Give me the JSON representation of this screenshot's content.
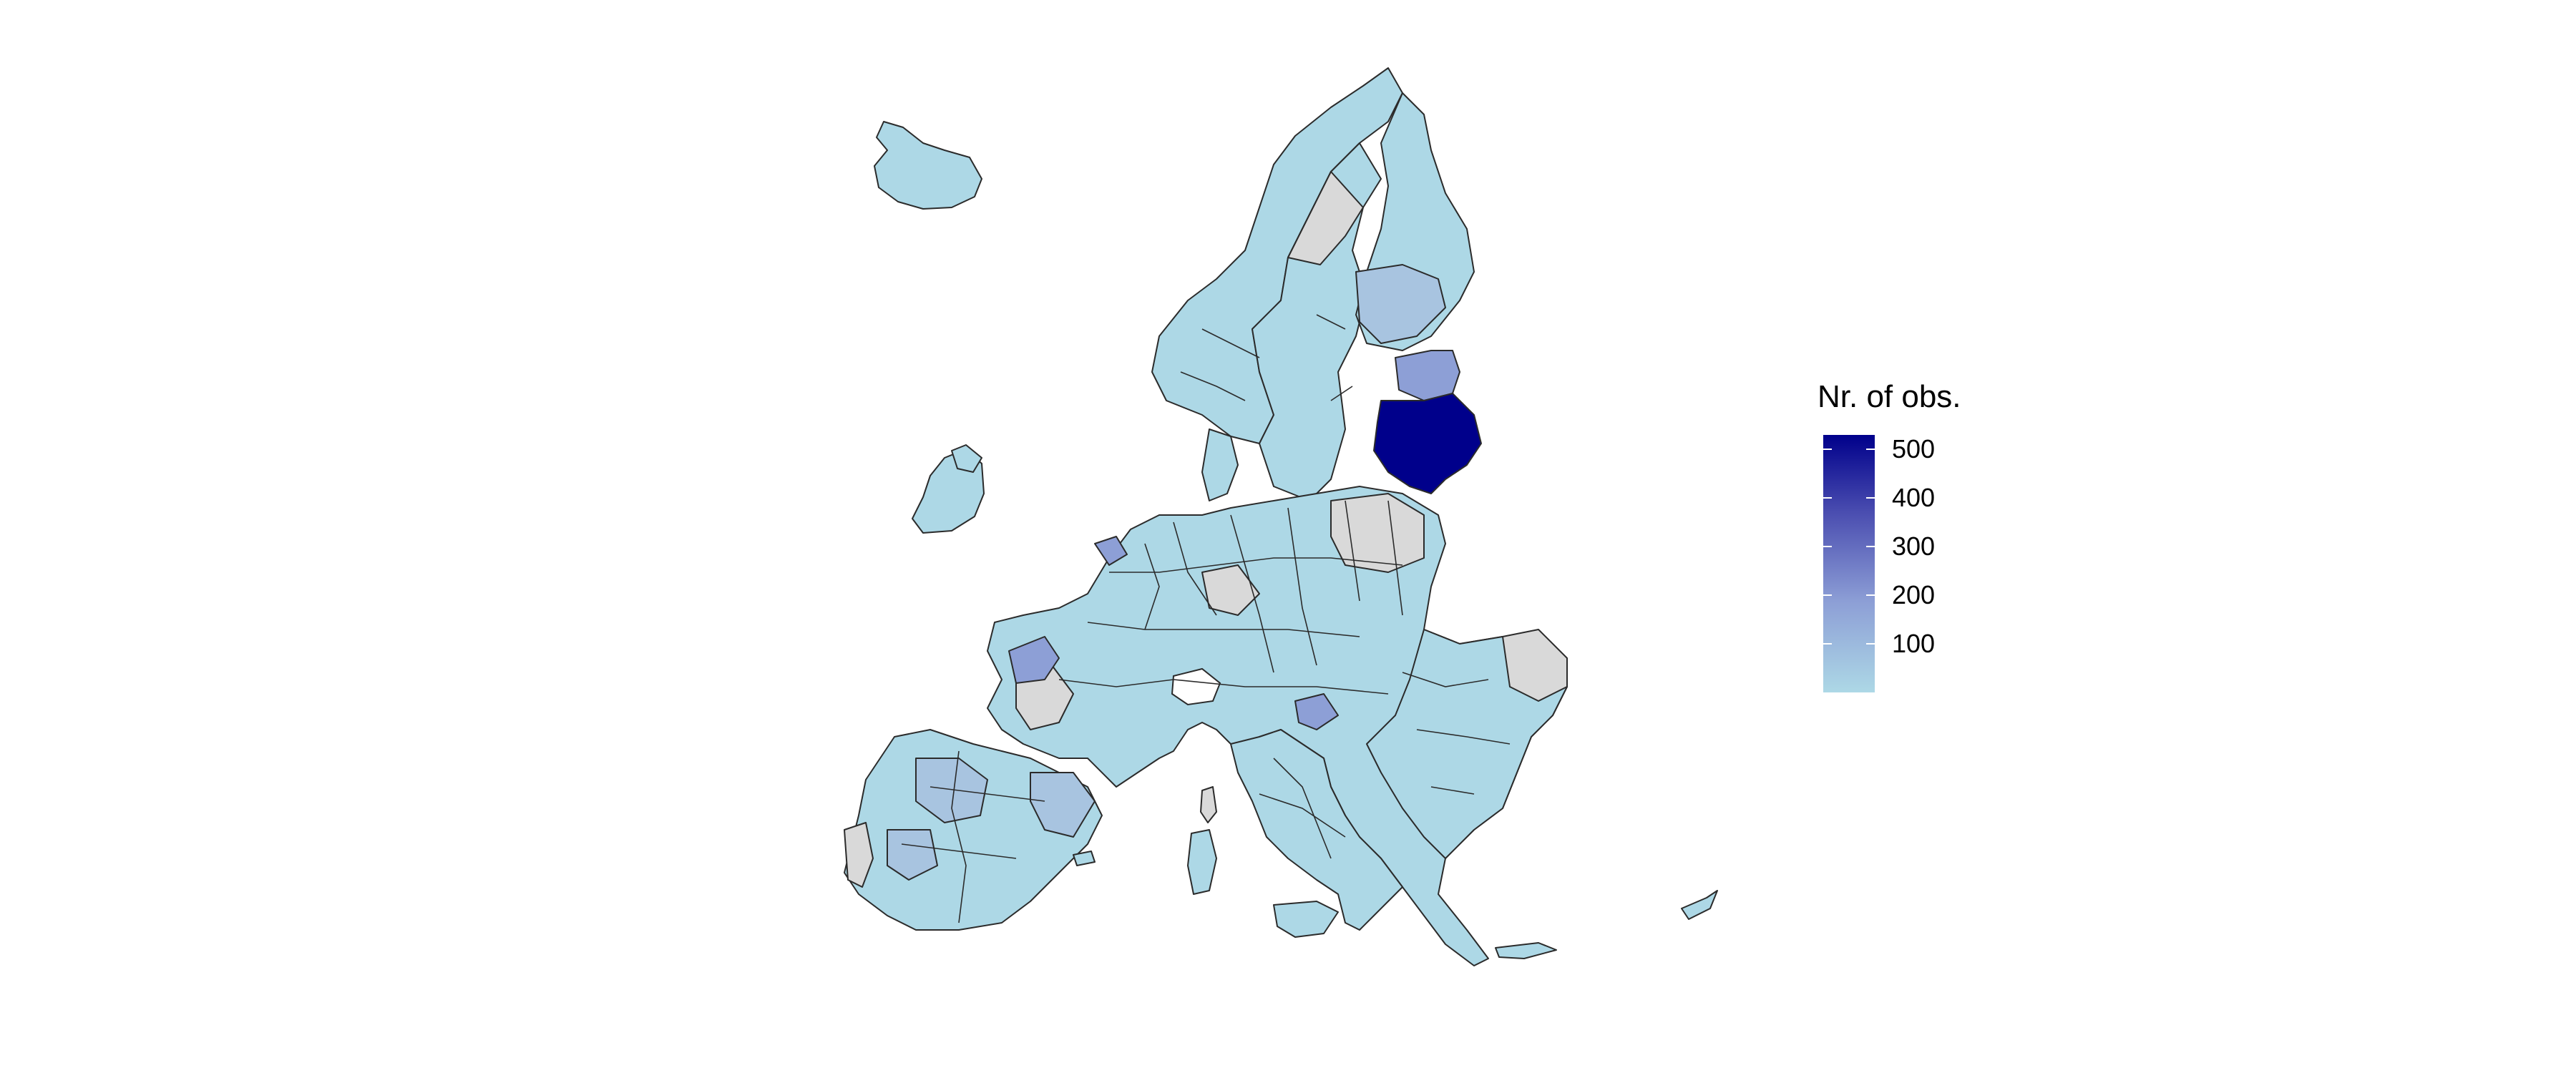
{
  "colors": {
    "no_data": "#d9d9d9",
    "low": "#add8e6",
    "mid": "#8d9fd6",
    "high": "#00008b",
    "border": "#2b2b2b"
  },
  "legend": {
    "title": "Nr. of obs.",
    "min": 0,
    "max": 530,
    "ticks": [
      {
        "value": 500,
        "label": "500"
      },
      {
        "value": 400,
        "label": "400"
      },
      {
        "value": 300,
        "label": "300"
      },
      {
        "value": 200,
        "label": "200"
      },
      {
        "value": 100,
        "label": "100"
      }
    ]
  }
}
